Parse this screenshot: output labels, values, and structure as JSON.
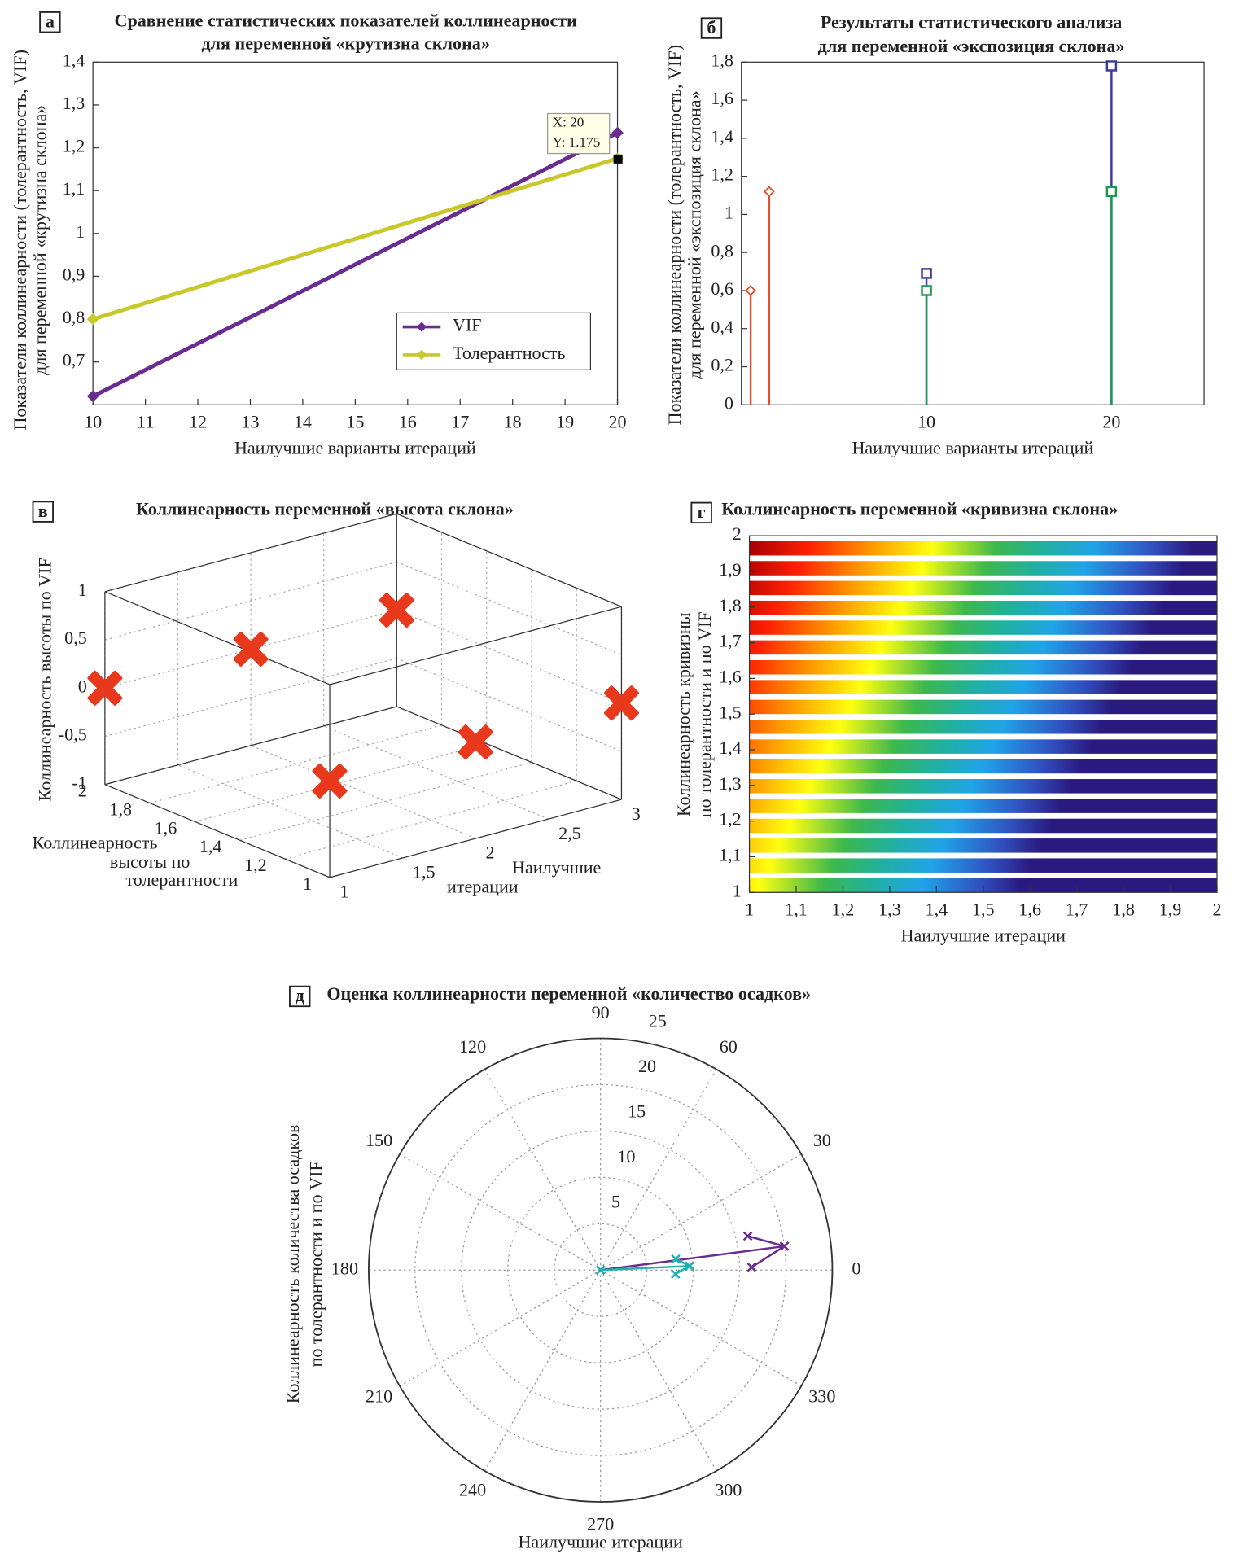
{
  "chart_data": [
    {
      "type": "line",
      "panel": "а",
      "title": [
        "Сравнение статистических показателей коллинеарности",
        "для переменной «крутизна склона»"
      ],
      "xlabel": "Наилучшие варианты итераций",
      "ylabel": [
        "Показатели коллинеарности (толерантность, VIF)",
        "для переменной «крутизна склона»"
      ],
      "x": [
        10,
        20
      ],
      "series": [
        {
          "name": "VIF",
          "color": "#6b2c8f",
          "values": [
            0.62,
            1.235
          ]
        },
        {
          "name": "Толерантность",
          "color": "#c9c82a",
          "values": [
            0.8,
            1.175
          ]
        }
      ],
      "xlim": [
        10,
        20
      ],
      "ylim": [
        0.6,
        1.4
      ],
      "xticks": [
        10,
        11,
        12,
        13,
        14,
        15,
        16,
        17,
        18,
        19,
        20
      ],
      "yticks": [
        {
          "value": 0.7,
          "label": "0,7"
        },
        {
          "value": 0.8,
          "label": "0,8"
        },
        {
          "value": 0.9,
          "label": "0,9"
        },
        1,
        {
          "value": 1.1,
          "label": "1,1"
        },
        {
          "value": 1.2,
          "label": "1,2"
        },
        {
          "value": 1.3,
          "label": "1,3"
        },
        {
          "value": 1.4,
          "label": "1,4"
        }
      ],
      "legend": "lower right",
      "datatip": {
        "x_label": "X: 20",
        "y_label": "Y: 1.175"
      }
    },
    {
      "type": "stem",
      "panel": "б",
      "title": [
        "Результаты статистического анализа",
        "для переменной «экспозиция склона»"
      ],
      "xlabel": "Наилучшие варианты итераций",
      "ylabel": [
        "Показатели коллинеарности (толерантность, VIF)",
        "для переменной «экспозиция склона»"
      ],
      "series": [
        {
          "color": "#e0502a",
          "marker": "diamond",
          "x": [
            0.5,
            1.5
          ],
          "values": [
            0.6,
            1.12
          ]
        },
        {
          "color": "#3a3a9a",
          "marker": "square",
          "x": [
            10,
            20
          ],
          "values": [
            0.69,
            1.78
          ]
        },
        {
          "color": "#1a9a50",
          "marker": "square",
          "x": [
            10,
            20
          ],
          "values": [
            0.6,
            1.12
          ]
        }
      ],
      "xlim": [
        0,
        25
      ],
      "ylim": [
        0,
        1.8
      ],
      "xticks": [
        10,
        20
      ],
      "yticks": [
        0,
        {
          "value": 0.2,
          "label": "0,2"
        },
        {
          "value": 0.4,
          "label": "0,4"
        },
        {
          "value": 0.6,
          "label": "0,6"
        },
        {
          "value": 0.8,
          "label": "0,8"
        },
        1,
        {
          "value": 1.2,
          "label": "1,2"
        },
        {
          "value": 1.4,
          "label": "1,4"
        },
        {
          "value": 1.6,
          "label": "1,6"
        },
        {
          "value": 1.8,
          "label": "1,8"
        }
      ]
    },
    {
      "type": "scatter3d",
      "panel": "в",
      "title": [
        "Коллинеарность переменной «высота склона»"
      ],
      "xlabel": [
        "Наилучшие",
        "итерации"
      ],
      "ylabel": [
        "Коллинеарность",
        "высоты по",
        "толерантности"
      ],
      "zlabel": "Коллинеарность высоты по VIF",
      "color": "#e8391d",
      "x": [
        1,
        2,
        3,
        1,
        2,
        3
      ],
      "y": [
        2,
        2,
        2,
        1,
        1,
        1
      ],
      "z": [
        0,
        0,
        0,
        0,
        0,
        0
      ],
      "xlim": [
        1,
        3
      ],
      "ylim": [
        1,
        2
      ],
      "zlim": [
        -1,
        1
      ],
      "xticks": [
        1,
        {
          "value": 1.5,
          "label": "1,5"
        },
        2,
        {
          "value": 2.5,
          "label": "2,5"
        },
        3
      ],
      "yticks": [
        1,
        {
          "value": 1.2,
          "label": "1,2"
        },
        {
          "value": 1.4,
          "label": "1,4"
        },
        {
          "value": 1.6,
          "label": "1,6"
        },
        {
          "value": 1.8,
          "label": "1,8"
        },
        2
      ],
      "zticks": [
        -1,
        {
          "value": -0.5,
          "label": "-0,5"
        },
        0,
        {
          "value": 0.5,
          "label": "0,5"
        },
        1
      ]
    },
    {
      "type": "image",
      "panel": "г",
      "title": [
        "Коллинеарность переменной «кривизна склона»"
      ],
      "xlabel": "Наилучшие итерации",
      "ylabel": [
        "Коллинеарность кривизны",
        "по толерантности и по VIF"
      ],
      "xlim": [
        1,
        2
      ],
      "ylim": [
        1,
        2
      ],
      "xticks": [
        1,
        {
          "value": 1.1,
          "label": "1,1"
        },
        {
          "value": 1.2,
          "label": "1,2"
        },
        {
          "value": 1.3,
          "label": "1,3"
        },
        {
          "value": 1.4,
          "label": "1,4"
        },
        {
          "value": 1.5,
          "label": "1,5"
        },
        {
          "value": 1.6,
          "label": "1,6"
        },
        {
          "value": 1.7,
          "label": "1,7"
        },
        {
          "value": 1.8,
          "label": "1,8"
        },
        {
          "value": 1.9,
          "label": "1,9"
        },
        2
      ],
      "yticks": [
        1,
        {
          "value": 1.1,
          "label": "1,1"
        },
        {
          "value": 1.2,
          "label": "1,2"
        },
        {
          "value": 1.3,
          "label": "1,3"
        },
        {
          "value": 1.4,
          "label": "1,4"
        },
        {
          "value": 1.5,
          "label": "1,5"
        },
        {
          "value": 1.6,
          "label": "1,6"
        },
        {
          "value": 1.7,
          "label": "1,7"
        },
        {
          "value": 1.8,
          "label": "1,8"
        },
        {
          "value": 1.9,
          "label": "1,9"
        },
        2
      ]
    },
    {
      "type": "polar",
      "panel": "д",
      "title": [
        "Оценка коллинеарности переменной «количество осадков»"
      ],
      "xlabel": "Наилучшие итерации",
      "ylabel": [
        "Коллинеарность количества осадков",
        "по толерантности и по VIF"
      ],
      "series": [
        {
          "color": "#6b2c8f",
          "theta": [
            0,
            7.4,
            13,
            7.4,
            1.1
          ],
          "r": [
            0,
            20,
            16.3,
            20,
            16.3
          ]
        },
        {
          "color": "#1fb0b0",
          "theta": [
            0,
            2.6,
            8.4,
            2.6,
            357
          ],
          "r": [
            0,
            9.6,
            8.2,
            9.6,
            8.1
          ]
        }
      ],
      "rlim": [
        0,
        25
      ],
      "rticks": [
        5,
        10,
        15,
        20,
        25
      ],
      "thetaticks": [
        0,
        30,
        60,
        90,
        120,
        150,
        180,
        210,
        240,
        270,
        300,
        330
      ]
    }
  ]
}
